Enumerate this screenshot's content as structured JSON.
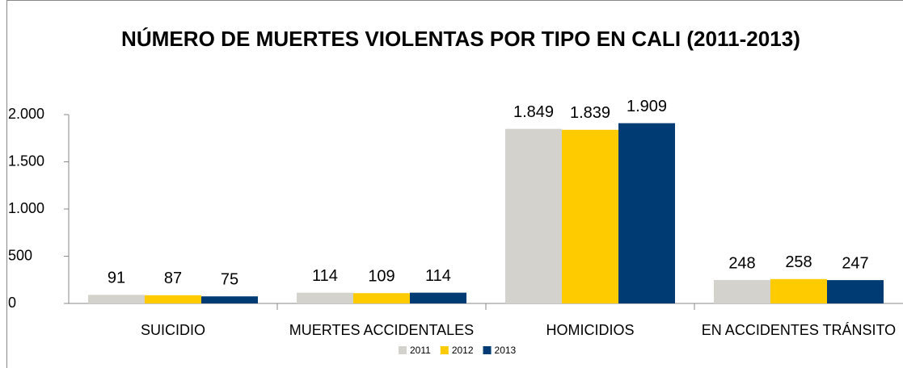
{
  "chart_data": {
    "type": "bar",
    "title": "NÚMERO DE MUERTES VIOLENTAS POR TIPO EN CALI (2011-2013)",
    "categories": [
      "SUICIDIO",
      "MUERTES ACCIDENTALES",
      "HOMICIDIOS",
      "EN ACCIDENTES  TRÁNSITO"
    ],
    "series": [
      {
        "name": "2011",
        "color": "#d4d2cc",
        "values": [
          91,
          114,
          1849,
          248
        ],
        "value_labels": [
          "91",
          "114",
          "1.849",
          "248"
        ]
      },
      {
        "name": "2012",
        "color": "#fecb00",
        "values": [
          87,
          109,
          1839,
          258
        ],
        "value_labels": [
          "87",
          "109",
          "1.839",
          "258"
        ]
      },
      {
        "name": "2013",
        "color": "#003b73",
        "values": [
          75,
          114,
          1909,
          247
        ],
        "value_labels": [
          "75",
          "114",
          "1.909",
          "247"
        ]
      }
    ],
    "ylim": [
      0,
      2000
    ],
    "yticks": [
      0,
      500,
      {
        "value": 1000,
        "label": "1.000"
      },
      {
        "value": 1500,
        "label": "1.500"
      },
      {
        "value": 2000,
        "label": "2.000"
      }
    ],
    "legend": "bottom"
  }
}
